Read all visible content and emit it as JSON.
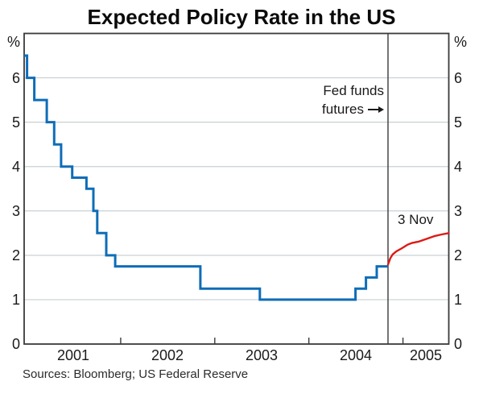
{
  "page": {
    "title": "Expected Policy Rate in the US",
    "source_note": "Sources: Bloomberg; US Federal Reserve"
  },
  "axes": {
    "left_unit": "%",
    "right_unit": "%"
  },
  "annotations": {
    "futures_label_line1": "Fed funds",
    "futures_label_line2": "futures",
    "futures_curve_label": "3 Nov"
  },
  "colors": {
    "policy_rate_line": "#0e6db8",
    "futures_line": "#dd1a15",
    "grid_line": "#c8d0d4",
    "frame": "#3a3a3a",
    "event_line": "#3a3a3a",
    "text": "#1a1a1a"
  },
  "chart_data": {
    "type": "line",
    "title": "Expected Policy Rate in the US",
    "ylabel_left": "%",
    "ylabel_right": "%",
    "ylim": [
      0,
      7
    ],
    "yticks": [
      0,
      1,
      2,
      3,
      4,
      5,
      6
    ],
    "xlim": [
      2000.974,
      2005.487
    ],
    "year_boundaries": [
      2001,
      2002,
      2003,
      2004,
      2005
    ],
    "xtick_labels": [
      "2001",
      "2002",
      "2003",
      "2004",
      "2005"
    ],
    "grid": "horizontal-only",
    "legend": "none",
    "event_line_x": 2004.841,
    "series": [
      {
        "id": "us-policy-rate",
        "style": "step",
        "color": "#0e6db8",
        "start": [
          2000.974,
          6.5
        ],
        "changes": [
          [
            2001.005,
            6.0
          ],
          [
            2001.082,
            5.5
          ],
          [
            2001.214,
            5.0
          ],
          [
            2001.293,
            4.5
          ],
          [
            2001.367,
            4.0
          ],
          [
            2001.485,
            3.75
          ],
          [
            2001.636,
            3.5
          ],
          [
            2001.71,
            3.0
          ],
          [
            2001.751,
            2.5
          ],
          [
            2001.847,
            2.0
          ],
          [
            2001.942,
            1.75
          ],
          [
            2002.847,
            1.25
          ],
          [
            2003.479,
            1.0
          ],
          [
            2004.495,
            1.25
          ],
          [
            2004.607,
            1.5
          ],
          [
            2004.721,
            1.75
          ]
        ],
        "end_x": 2004.841
      },
      {
        "id": "fed-funds-futures-3nov",
        "style": "line",
        "color": "#dd1a15",
        "points": [
          [
            2004.841,
            1.79
          ],
          [
            2004.865,
            1.93
          ],
          [
            2004.89,
            2.02
          ],
          [
            2004.93,
            2.09
          ],
          [
            2004.99,
            2.16
          ],
          [
            2005.05,
            2.24
          ],
          [
            2005.1,
            2.28
          ],
          [
            2005.17,
            2.31
          ],
          [
            2005.25,
            2.37
          ],
          [
            2005.33,
            2.43
          ],
          [
            2005.41,
            2.47
          ],
          [
            2005.487,
            2.5
          ]
        ]
      }
    ]
  }
}
